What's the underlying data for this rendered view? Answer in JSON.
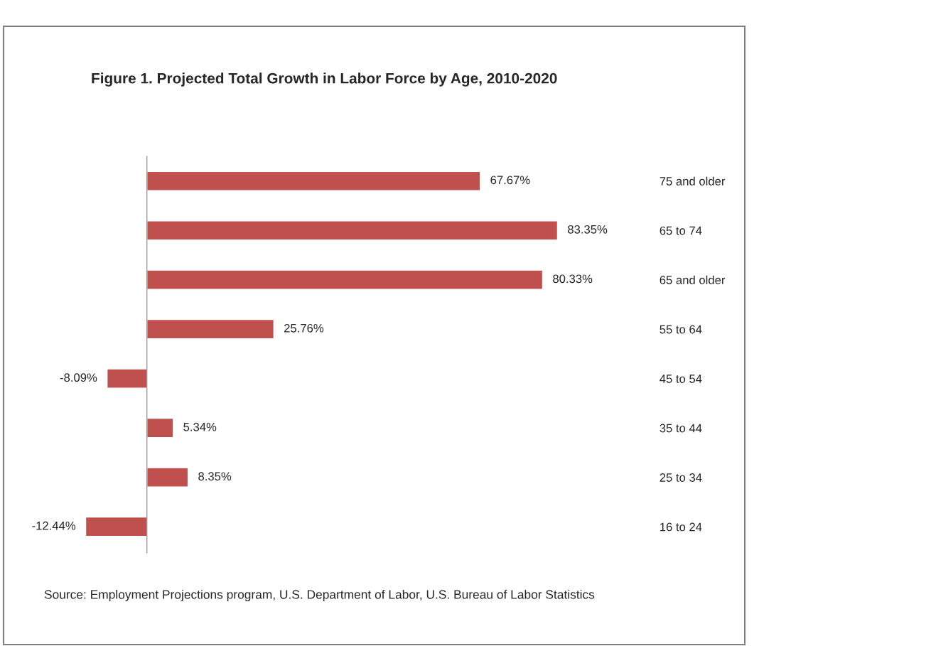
{
  "chart_data": {
    "type": "bar",
    "orientation": "horizontal",
    "title": "Figure 1. Projected Total Growth in Labor Force by Age, 2010-2020",
    "categories": [
      "75 and older",
      "65 to 74",
      "65 and older",
      "55 to 64",
      "45 to 54",
      "35 to 44",
      "25 to 34",
      "16 to 24"
    ],
    "values": [
      67.67,
      83.35,
      80.33,
      25.76,
      -8.09,
      5.34,
      8.35,
      -12.44
    ],
    "value_labels": [
      "67.67%",
      "83.35%",
      "80.33%",
      "25.76%",
      "-8.09%",
      "5.34%",
      "8.35%",
      "-12.44%"
    ],
    "color": "#c0504d",
    "grid": false,
    "legend": false,
    "annotations": [
      "Source: Employment Projections program, U.S. Department of Labor, U.S. Bureau of Labor Statistics"
    ]
  }
}
